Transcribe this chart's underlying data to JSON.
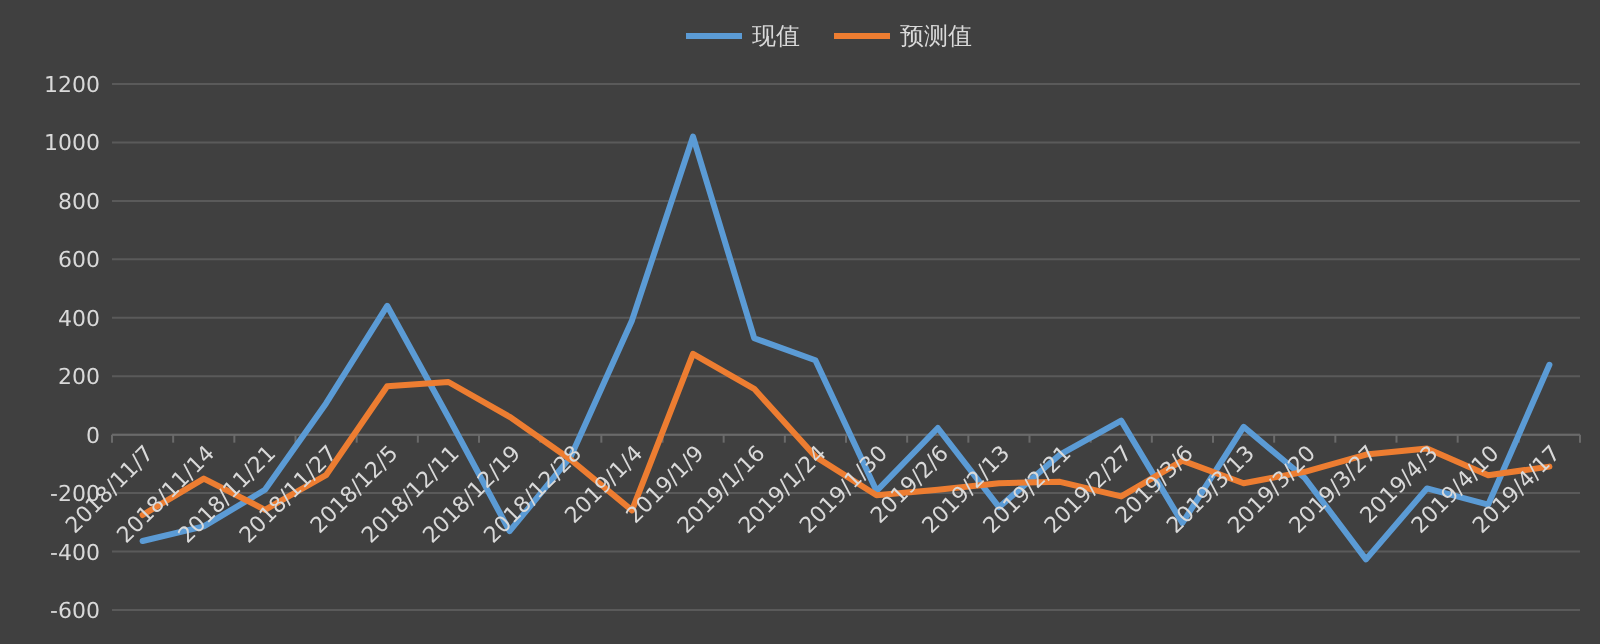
{
  "chart_data": {
    "type": "line",
    "categories": [
      "2018/11/7",
      "2018/11/14",
      "2018/11/21",
      "2018/11/27",
      "2018/12/5",
      "2018/12/11",
      "2018/12/19",
      "2018/12/28",
      "2019/1/4",
      "2019/1/9",
      "2019/1/16",
      "2019/1/24",
      "2019/1/30",
      "2019/2/6",
      "2019/2/13",
      "2019/2/21",
      "2019/2/27",
      "2019/3/6",
      "2019/3/13",
      "2019/3/20",
      "2019/3/27",
      "2019/4/3",
      "2019/4/10",
      "2019/4/17"
    ],
    "series": [
      {
        "name": "现值",
        "color": "#5b9bd5",
        "values": [
          -364,
          -314,
          -189,
          107,
          441,
          60,
          -330,
          -75,
          391,
          1020,
          330,
          255,
          -193,
          23,
          -248,
          -68,
          48,
          -302,
          27,
          -148,
          -427,
          -184,
          -239,
          239
        ]
      },
      {
        "name": "预测值",
        "color": "#ed7d31",
        "values": [
          -275,
          -150,
          -257,
          -139,
          166,
          180,
          61,
          -86,
          -259,
          277,
          157,
          -75,
          -207,
          -189,
          -166,
          -161,
          -211,
          -89,
          -166,
          -127,
          -68,
          -48,
          -139,
          -109
        ]
      }
    ],
    "ylim": [
      -600,
      1200
    ],
    "yticks": [
      -600,
      -400,
      -200,
      0,
      200,
      400,
      600,
      800,
      1000,
      1200
    ],
    "grid": "y",
    "legend": "top"
  }
}
